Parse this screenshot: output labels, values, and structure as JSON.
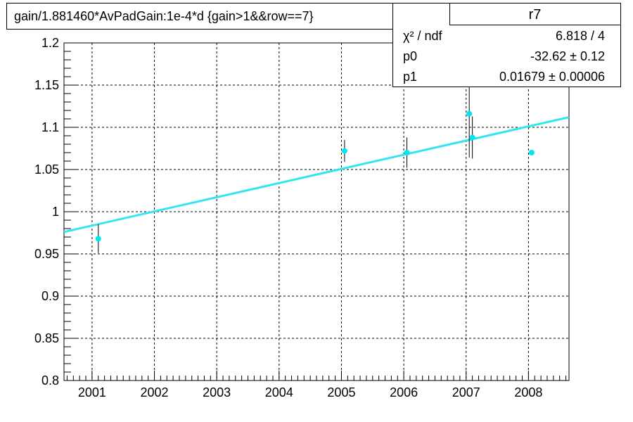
{
  "chart_data": {
    "type": "scatter",
    "title": "gain/1.881460*AvPadGain:1e-4*d  {gain>1&&row==7}",
    "xlabel": "",
    "ylabel": "",
    "xlim": [
      2000.55,
      2008.65
    ],
    "ylim": [
      0.8,
      1.2
    ],
    "x_ticks": [
      2001,
      2002,
      2003,
      2004,
      2005,
      2006,
      2007,
      2008
    ],
    "x_tick_labels": [
      "2001",
      "2002",
      "2003",
      "2004",
      "2005",
      "2006",
      "2007",
      "2008"
    ],
    "y_ticks": [
      0.8,
      0.85,
      0.9,
      0.95,
      1.0,
      1.05,
      1.1,
      1.15,
      1.2
    ],
    "y_tick_labels": [
      "0.8",
      "0.85",
      "0.9",
      "0.95",
      "1",
      "1.05",
      "1.1",
      "1.15",
      "1.2"
    ],
    "grid": true,
    "points": [
      {
        "x": 2001.1,
        "y": 0.968,
        "err": 0.017
      },
      {
        "x": 2005.05,
        "y": 1.072,
        "err": 0.013
      },
      {
        "x": 2006.05,
        "y": 1.07,
        "err": 0.018
      },
      {
        "x": 2007.05,
        "y": 1.116,
        "err": 0.052
      },
      {
        "x": 2007.1,
        "y": 1.088,
        "err": 0.025
      },
      {
        "x": 2008.05,
        "y": 1.07,
        "err": 0.0
      }
    ],
    "fit_line": {
      "p0": -32.62,
      "p1": 0.01679
    },
    "fit_line_display": [
      {
        "x": 2000.55,
        "y": 0.976
      },
      {
        "x": 2008.65,
        "y": 1.112
      }
    ],
    "marker_color": "#00e5ee",
    "fit_color": "#33e6ee",
    "stats": {
      "name": "r7",
      "rows": [
        {
          "label": "χ² / ndf",
          "value": "6.818 / 4"
        },
        {
          "label": "p0",
          "value": "-32.62 ± 0.12"
        },
        {
          "label": "p1",
          "value": "0.01679  ± 0.00006"
        }
      ]
    }
  }
}
